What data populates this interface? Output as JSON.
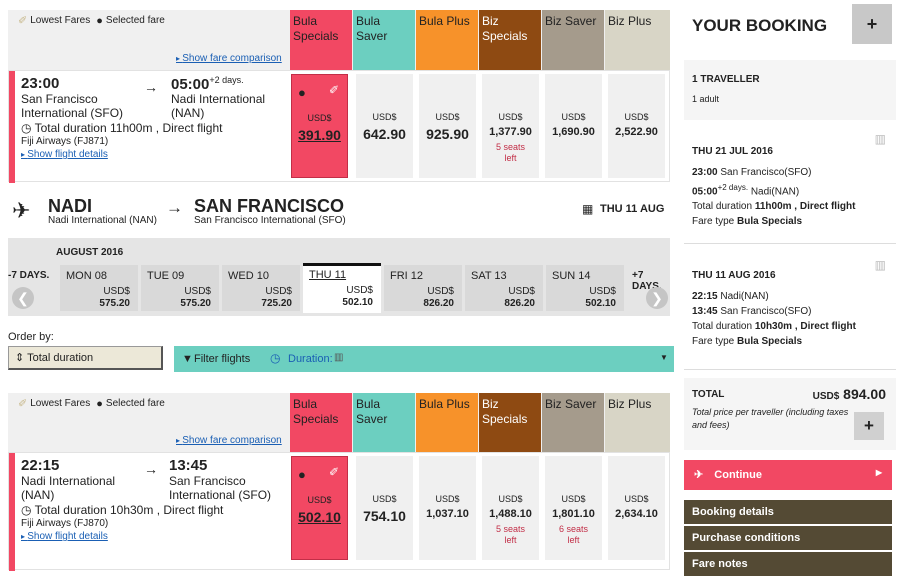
{
  "fare_labels": {
    "lowest": "Lowest Fares",
    "selected": "Selected fare",
    "show_comparison": "Show fare comparison"
  },
  "fare_columns": [
    {
      "label": "Bula Specials",
      "color": "#f24863"
    },
    {
      "label": "Bula Saver",
      "color": "#6ccfc0"
    },
    {
      "label": "Bula Plus",
      "color": "#f7922a"
    },
    {
      "label": "Biz Specials",
      "color": "#8e4a12"
    },
    {
      "label": "Biz Saver",
      "color": "#a59b8c"
    },
    {
      "label": "Biz Plus",
      "color": "#d8d5c6"
    }
  ],
  "outbound": {
    "dep_time": "23:00",
    "arr_time": "05:00",
    "arr_days": "+2 days.",
    "dep_place": "San Francisco International (SFO)",
    "arr_place": "Nadi International (NAN)",
    "duration": "Total duration 11h00m , Direct flight",
    "airline": "Fiji Airways (FJ871)",
    "details": "Show flight details",
    "currency": "USD$",
    "prices": [
      "391.90",
      "642.90",
      "925.90",
      "1,377.90",
      "1,690.90",
      "2,522.90"
    ],
    "seats": [
      "",
      "",
      "",
      "5 seats left",
      "",
      ""
    ]
  },
  "route": {
    "from_code": "NADI",
    "from_name": "Nadi International (NAN)",
    "to_code": "SAN FRANCISCO",
    "to_name": "San Francisco International (SFO)",
    "date": "THU 11 AUG"
  },
  "dates": {
    "month": "AUGUST 2016",
    "prev": "-7 DAYS.",
    "next": "+7 DAYS.",
    "items": [
      {
        "label": "MON 08",
        "price": "575.20"
      },
      {
        "label": "TUE 09",
        "price": "575.20"
      },
      {
        "label": "WED 10",
        "price": "725.20"
      },
      {
        "label": "THU 11",
        "price": "502.10"
      },
      {
        "label": "FRI 12",
        "price": "826.20"
      },
      {
        "label": "SAT 13",
        "price": "826.20"
      },
      {
        "label": "SUN 14",
        "price": "502.10"
      }
    ]
  },
  "order": {
    "label": "Order by:",
    "value": "Total duration",
    "filter": "Filter flights",
    "duration": "Duration:"
  },
  "inbound": {
    "dep_time": "22:15",
    "arr_time": "13:45",
    "dep_place": "Nadi International (NAN)",
    "arr_place": "San Francisco International (SFO)",
    "duration": "Total duration 10h30m , Direct flight",
    "airline": "Fiji Airways (FJ870)",
    "details": "Show flight details",
    "currency": "USD$",
    "prices": [
      "502.10",
      "754.10",
      "1,037.10",
      "1,488.10",
      "1,801.10",
      "2,634.10"
    ],
    "seats": [
      "",
      "",
      "",
      "5 seats left",
      "6 seats left",
      ""
    ]
  },
  "booking": {
    "title": "YOUR BOOKING",
    "travellers": "1 TRAVELLER",
    "adults": "1 adult",
    "leg1": {
      "date": "THU 21 JUL 2016",
      "dep": "23:00",
      "dep_place": "San Francisco(SFO)",
      "arr": "05:00",
      "days": "+2 days.",
      "arr_place": "Nadi(NAN)",
      "dur_pre": "Total duration ",
      "dur": "11h00m , Direct flight",
      "type_pre": "Fare type ",
      "type": "Bula Specials"
    },
    "leg2": {
      "date": "THU 11 AUG 2016",
      "dep": "22:15",
      "dep_place": "Nadi(NAN)",
      "arr": "13:45",
      "arr_place": "San Francisco(SFO)",
      "dur_pre": "Total duration ",
      "dur": "10h30m , Direct flight",
      "type_pre": "Fare type ",
      "type": "Bula Specials"
    },
    "total_label": "TOTAL",
    "total_cur": "USD$",
    "total_value": "894.00",
    "total_note": "Total price per traveller (including taxes and fees)",
    "continue": "Continue",
    "links": [
      "Booking details",
      "Purchase conditions",
      "Fare notes"
    ]
  }
}
